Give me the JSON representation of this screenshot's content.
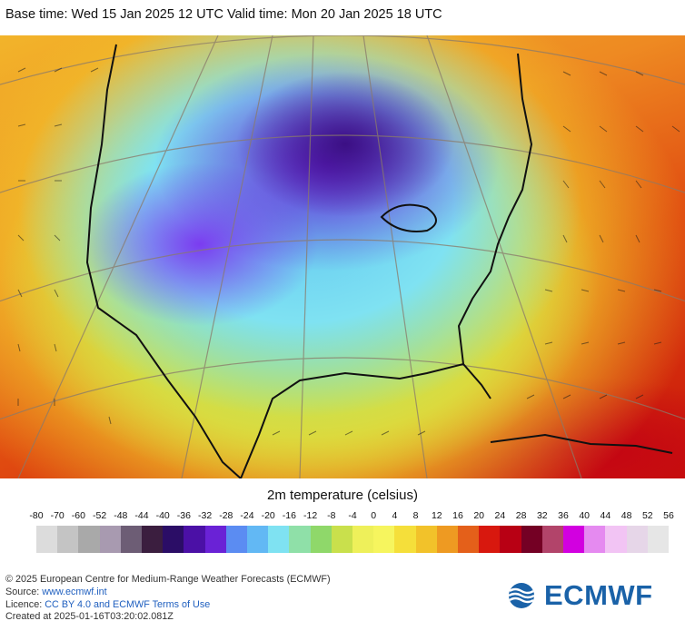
{
  "header": {
    "text": "Base time: Wed 15 Jan 2025 12 UTC Valid time: Mon 20 Jan 2025 18 UTC"
  },
  "legend": {
    "title": "2m temperature (celsius)",
    "ticks": [
      "-80",
      "-70",
      "-60",
      "-52",
      "-48",
      "-44",
      "-40",
      "-36",
      "-32",
      "-28",
      "-24",
      "-20",
      "-16",
      "-12",
      "-8",
      "-4",
      "0",
      "4",
      "8",
      "12",
      "16",
      "20",
      "24",
      "28",
      "32",
      "36",
      "40",
      "44",
      "48",
      "52",
      "56"
    ],
    "colors": [
      "#dcdcdc",
      "#c4c4c4",
      "#a9a9a9",
      "#a89ab0",
      "#6d5d75",
      "#3b1e3f",
      "#2b0d66",
      "#4b10a6",
      "#6a22d6",
      "#5b8cf2",
      "#62b8f4",
      "#7fe2f2",
      "#8fe0a8",
      "#8fd86a",
      "#c9e04c",
      "#eef05a",
      "#f6f55e",
      "#f5df3a",
      "#f2c22a",
      "#ee9a22",
      "#e4601a",
      "#d8180e",
      "#b80014",
      "#740024",
      "#b2446a",
      "#d200e0",
      "#e58af0",
      "#f2c4f4",
      "#e6d6e8",
      "#e6e6e6"
    ]
  },
  "credits": {
    "line1": "© 2025 European Centre for Medium-Range Weather Forecasts (ECMWF)",
    "line2_label": "Source: ",
    "line2_link": "www.ecmwf.int",
    "line3_label": "Licence: ",
    "line3_link": "CC BY 4.0 and ECMWF Terms of Use",
    "line4": "Created at 2025-01-16T03:20:02.081Z"
  },
  "logo": {
    "text": "ECMWF"
  }
}
